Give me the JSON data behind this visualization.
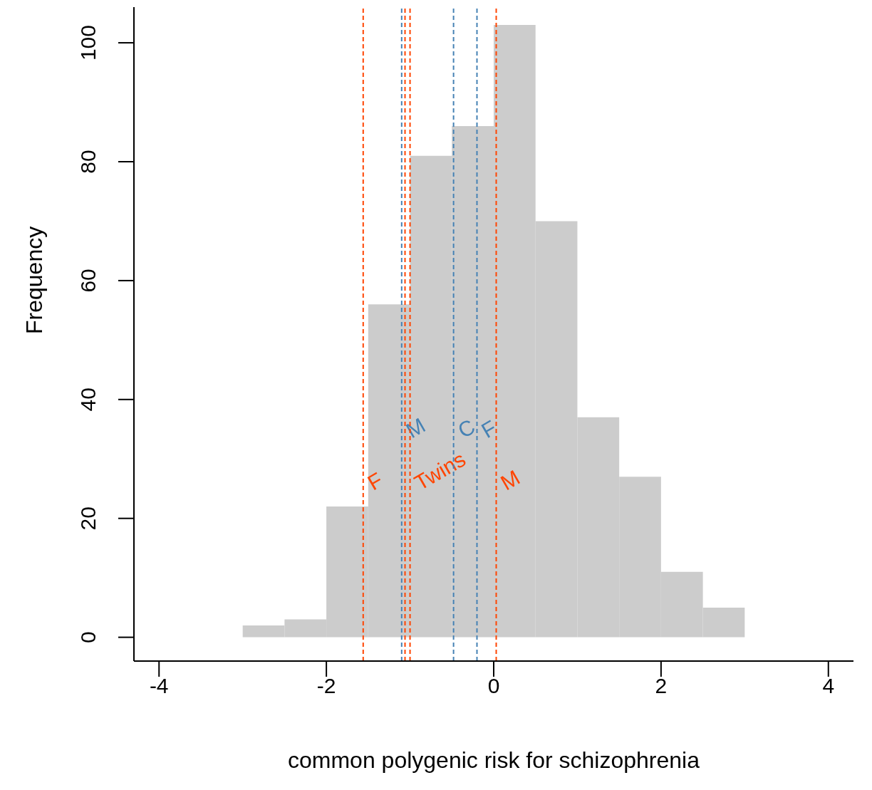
{
  "chart_data": {
    "type": "histogram",
    "xlabel": "common polygenic risk for schizophrenia",
    "ylabel": "Frequency",
    "bins": [
      -3,
      -2.5,
      -2,
      -1.5,
      -1,
      -0.5,
      0,
      0.5,
      1,
      1.5,
      2,
      2.5,
      3
    ],
    "values": [
      2,
      3,
      22,
      56,
      81,
      86,
      103,
      70,
      37,
      27,
      11,
      5
    ],
    "color": "#cccccc",
    "xlim": [
      -4.3,
      4.3
    ],
    "xticks": [
      -4,
      -2,
      0,
      2,
      4
    ],
    "ylim": [
      -4,
      106
    ],
    "yticks": [
      0,
      20,
      40,
      60,
      80,
      100
    ],
    "ref_lines": [
      {
        "axis": "x",
        "value": -1.56,
        "label": "F",
        "color": "#ff4500",
        "line_style": "dashed"
      },
      {
        "axis": "x",
        "value": -1.1,
        "label": "M",
        "color": "#4682b4",
        "line_style": "dashed"
      },
      {
        "axis": "x",
        "value": -1.06,
        "color": "#ff4500",
        "line_style": "dashed"
      },
      {
        "axis": "x",
        "value": -1.0,
        "label": "Twins",
        "color": "#ff4500",
        "line_style": "dashed"
      },
      {
        "axis": "x",
        "value": -0.48,
        "label": "C",
        "color": "#4682b4",
        "line_style": "dashed"
      },
      {
        "axis": "x",
        "value": -0.2,
        "label": "F",
        "color": "#4682b4",
        "line_style": "dashed"
      },
      {
        "axis": "x",
        "value": 0.03,
        "label": "M",
        "color": "#ff4500",
        "line_style": "dashed"
      }
    ]
  }
}
